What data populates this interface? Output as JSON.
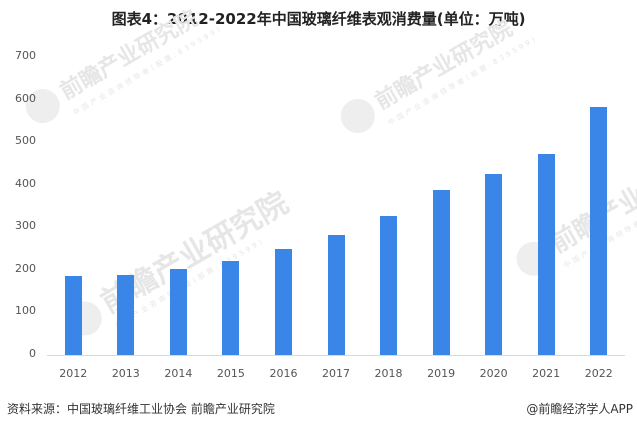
{
  "title": "图表4：2012-2022年中国玻璃纤维表观消费量(单位：万吨)",
  "footer": {
    "source": "资料来源：中国玻璃纤维工业协会 前瞻产业研究院",
    "credit": "@前瞻经济学人APP"
  },
  "watermark": {
    "text": "前瞻产业研究院",
    "subtext": "中国产业咨询领导者(股票:839599)"
  },
  "colors": {
    "bar": "#3A86E8",
    "axis": "#d9d9d9",
    "tick_text": "#555555"
  },
  "chart_data": {
    "type": "bar",
    "title": "图表4：2012-2022年中国玻璃纤维表观消费量(单位：万吨)",
    "xlabel": "",
    "ylabel": "万吨",
    "categories": [
      "2012",
      "2013",
      "2014",
      "2015",
      "2016",
      "2017",
      "2018",
      "2019",
      "2020",
      "2021",
      "2022"
    ],
    "values": [
      185,
      188,
      202,
      221,
      249,
      282,
      326,
      387,
      425,
      472,
      582
    ],
    "ylim": [
      0,
      700
    ],
    "yticks": [
      0,
      100,
      200,
      300,
      400,
      500,
      600,
      700
    ],
    "grid": false,
    "legend": null
  }
}
